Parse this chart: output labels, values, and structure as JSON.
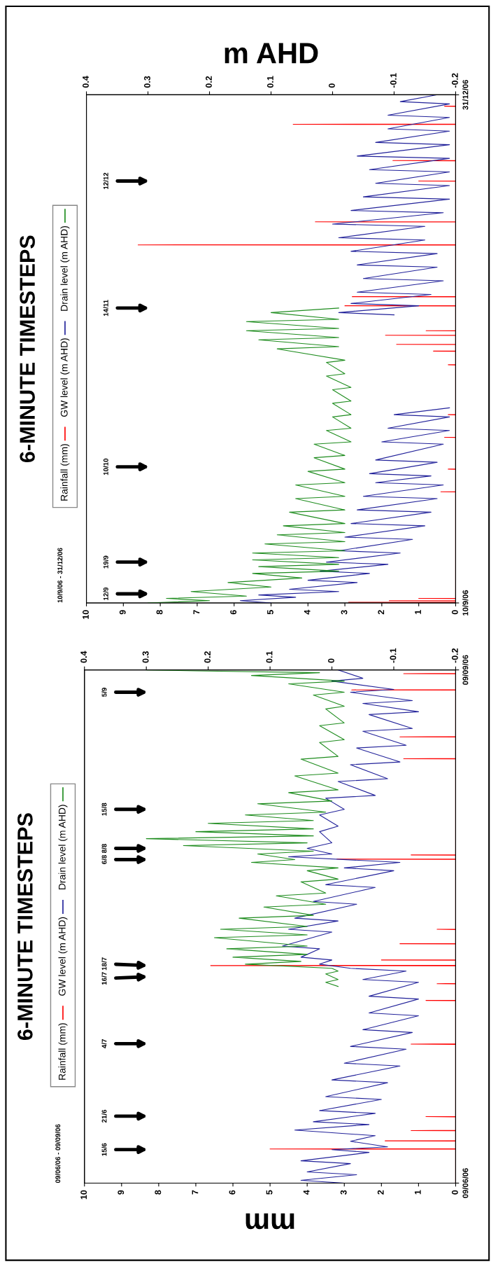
{
  "chart_data": [
    {
      "type": "line",
      "orientation": "horizontal",
      "title": "6-MINUTE TIMESTEPS",
      "subtitle": "10/9/06 - 31/12/06",
      "x2label": "m AHD",
      "legend": "left",
      "ylim": [
        "2006-09-10",
        "2006-12-31"
      ],
      "yticks": [
        {
          "value": "2006-09-10",
          "label": "10/9/06"
        },
        {
          "value": "2006-12-31",
          "label": "31/12/06"
        }
      ],
      "xlim": [
        10,
        0
      ],
      "xticks": [
        0,
        1,
        2,
        3,
        4,
        5,
        6,
        7,
        8,
        9,
        10
      ],
      "x2lim": [
        0.4,
        -0.2
      ],
      "x2ticks": [
        -0.2,
        -0.1,
        0,
        0.1,
        0.2,
        0.3,
        0.4
      ],
      "series": [
        {
          "name": "Rainfall (mm)",
          "color": "#ff0000",
          "x": [
            "2006-09-10T00:00",
            "2006-09-10T02:00",
            "2006-09-10T03:00",
            "2006-09-10T04:00",
            "2006-09-10T11:00",
            "2006-09-10T12:00",
            "2006-09-10T13:00",
            "2006-09-10T23:00",
            "2006-09-11T00:00",
            "2006-09-11T01:00",
            "2006-10-04T11:00",
            "2006-10-04T12:00",
            "2006-10-04T13:00",
            "2006-10-09T11:00",
            "2006-10-09T12:00",
            "2006-10-09T13:00",
            "2006-10-16T11:00",
            "2006-10-16T12:00",
            "2006-10-16T13:00",
            "2006-10-21T11:00",
            "2006-10-21T12:00",
            "2006-10-21T13:00",
            "2006-11-01T11:00",
            "2006-11-01T12:00",
            "2006-11-01T13:00",
            "2006-11-04T11:00",
            "2006-11-04T12:00",
            "2006-11-04T13:00",
            "2006-11-05T23:00",
            "2006-11-06T00:00",
            "2006-11-06T01:00",
            "2006-11-07T23:00",
            "2006-11-08T00:00",
            "2006-11-08T01:00",
            "2006-11-08T23:00",
            "2006-11-09T00:00",
            "2006-11-09T01:00",
            "2006-11-14T11:00",
            "2006-11-14T12:00",
            "2006-11-14T13:00",
            "2006-11-16T11:00",
            "2006-11-16T12:00",
            "2006-11-16T13:00",
            "2006-11-27T21:00",
            "2006-11-27T22:00",
            "2006-11-27T23:00",
            "2006-12-02T23:00",
            "2006-12-03T00:00",
            "2006-12-03T01:00",
            "2006-12-11T23:00",
            "2006-12-12T00:00",
            "2006-12-12T01:00",
            "2006-12-16T11:00",
            "2006-12-16T12:00",
            "2006-12-16T13:00",
            "2006-12-24T11:00",
            "2006-12-24T12:00",
            "2006-12-24T13:00",
            "2006-12-28T11:00",
            "2006-12-28T12:00",
            "2006-12-28T13:00",
            "2006-12-31T00:00"
          ],
          "values": [
            0,
            0,
            2.9,
            0,
            0,
            1.8,
            0,
            0,
            1.0,
            0,
            0,
            0.4,
            0,
            0,
            0.2,
            0,
            0,
            0.3,
            0,
            0,
            0.2,
            0,
            0,
            0.2,
            0,
            0,
            0.6,
            0,
            0,
            1.6,
            0,
            0,
            1.9,
            0,
            0,
            0.8,
            0,
            0,
            3.0,
            0,
            0,
            2.8,
            0,
            0,
            8.6,
            0,
            0,
            3.8,
            0,
            0,
            1.0,
            0,
            0,
            1.7,
            0,
            0,
            4.4,
            0,
            0,
            0.3,
            0,
            0
          ]
        },
        {
          "name": "GW level (m AHD)",
          "color": "#22229a",
          "axis": "x2",
          "x": [
            "2006-09-10T00:00",
            "2006-09-10T12:00",
            "2006-09-11T06:00",
            "2006-09-11T18:00",
            "2006-09-12T12:00",
            "2006-09-13T00:00",
            "2006-09-14T12:00",
            "2006-09-15T00:00",
            "2006-09-16T12:00",
            "2006-09-17T00:00",
            "2006-09-18T12:00",
            "2006-09-19T00:00",
            "2006-09-21T00:00",
            "2006-09-21T12:00",
            "2006-09-24T00:00",
            "2006-09-24T12:00",
            "2006-09-27T00:00",
            "2006-09-27T12:00",
            "2006-09-30T00:00",
            "2006-09-30T12:00",
            "2006-10-03T00:00",
            "2006-10-03T12:00",
            "2006-10-06T00:00",
            "2006-10-06T12:00",
            "2006-10-08T00:00",
            "2006-10-08T12:00",
            "2006-10-11T00:00",
            "2006-10-11T12:00",
            "2006-10-15T00:00",
            "2006-10-15T12:00",
            "2006-10-18T00:00",
            "2006-10-18T12:00",
            "2006-10-21T00:00",
            "2006-10-21T12:00",
            "2006-10-23T00:00",
            "2006-11-01T00:00",
            "2006-11-12T12:00",
            "2006-11-13T00:00",
            "2006-11-14T12:00",
            "2006-11-15T00:00",
            "2006-11-17T00:00",
            "2006-11-17T12:00",
            "2006-11-20T00:00",
            "2006-11-20T12:00",
            "2006-11-23T00:00",
            "2006-11-23T12:00",
            "2006-11-26T00:00",
            "2006-11-26T12:00",
            "2006-11-29T00:00",
            "2006-11-29T12:00",
            "2006-12-02T00:00",
            "2006-12-02T12:00",
            "2006-12-05T00:00",
            "2006-12-05T12:00",
            "2006-12-08T00:00",
            "2006-12-08T12:00",
            "2006-12-11T00:00",
            "2006-12-11T12:00",
            "2006-12-14T00:00",
            "2006-12-14T12:00",
            "2006-12-17T00:00",
            "2006-12-17T12:00",
            "2006-12-20T00:00",
            "2006-12-20T12:00",
            "2006-12-23T00:00",
            "2006-12-23T12:00",
            "2006-12-26T00:00",
            "2006-12-26T12:00",
            "2006-12-29T00:00",
            "2006-12-29T12:00",
            "2006-12-31T00:00"
          ],
          "values": [
            0.1,
            0.15,
            0.06,
            0.12,
            -0.01,
            0.07,
            -0.04,
            0.04,
            -0.06,
            0.02,
            -0.09,
            0.01,
            -0.11,
            -0.01,
            -0.13,
            -0.02,
            -0.15,
            -0.03,
            -0.16,
            -0.04,
            -0.17,
            -0.05,
            -0.18,
            -0.07,
            -0.16,
            -0.06,
            -0.17,
            -0.07,
            -0.18,
            -0.08,
            -0.19,
            -0.09,
            -0.19,
            -0.1,
            -0.19,
            null,
            -0.1,
            -0.01,
            -0.14,
            -0.03,
            -0.16,
            -0.04,
            -0.18,
            -0.05,
            -0.17,
            -0.04,
            -0.17,
            -0.03,
            -0.15,
            -0.01,
            -0.15,
            0.0,
            -0.18,
            -0.03,
            -0.19,
            -0.05,
            -0.19,
            -0.07,
            -0.19,
            -0.06,
            -0.19,
            -0.04,
            -0.19,
            -0.07,
            -0.19,
            -0.09,
            -0.19,
            -0.09,
            -0.19,
            -0.11,
            -0.17
          ]
        },
        {
          "name": "Drain level (m AHD)",
          "color": "#1e8c1e",
          "axis": "x2",
          "x": [
            "2006-09-10T00:00",
            "2006-09-10T12:00",
            "2006-09-11T00:00",
            "2006-09-11T12:00",
            "2006-09-12T12:00",
            "2006-09-13T12:00",
            "2006-09-14T12:00",
            "2006-09-15T12:00",
            "2006-09-16T12:00",
            "2006-09-17T00:00",
            "2006-09-18T00:00",
            "2006-09-18T12:00",
            "2006-09-19T12:00",
            "2006-09-20T00:00",
            "2006-09-21T00:00",
            "2006-09-21T12:00",
            "2006-09-23T00:00",
            "2006-09-23T12:00",
            "2006-09-25T00:00",
            "2006-09-25T12:00",
            "2006-09-27T00:00",
            "2006-09-27T12:00",
            "2006-09-30T00:00",
            "2006-09-30T12:00",
            "2006-10-03T00:00",
            "2006-10-03T12:00",
            "2006-10-06T00:00",
            "2006-10-06T12:00",
            "2006-10-09T00:00",
            "2006-10-09T12:00",
            "2006-10-12T00:00",
            "2006-10-12T12:00",
            "2006-10-15T00:00",
            "2006-10-15T12:00",
            "2006-10-18T00:00",
            "2006-10-18T12:00",
            "2006-10-21T00:00",
            "2006-10-21T12:00",
            "2006-10-24T00:00",
            "2006-10-24T12:00",
            "2006-10-27T00:00",
            "2006-10-27T12:00",
            "2006-10-30T00:00",
            "2006-10-30T12:00",
            "2006-11-02T00:00",
            "2006-11-02T12:00",
            "2006-11-05T00:00",
            "2006-11-05T12:00",
            "2006-11-07T00:00",
            "2006-11-07T12:00",
            "2006-11-09T00:00",
            "2006-11-09T12:00",
            "2006-11-11T00:00",
            "2006-11-11T12:00",
            "2006-11-13T00:00",
            "2006-11-14T00:00"
          ],
          "values": [
            0.3,
            0.2,
            0.27,
            0.14,
            0.23,
            0.1,
            0.17,
            0.05,
            0.13,
            -0.01,
            0.12,
            -0.01,
            0.13,
            -0.01,
            0.13,
            -0.02,
            0.11,
            -0.02,
            0.09,
            -0.02,
            0.08,
            -0.02,
            0.07,
            -0.02,
            0.06,
            -0.02,
            0.06,
            -0.02,
            0.04,
            -0.02,
            0.03,
            -0.02,
            0.03,
            -0.03,
            0.01,
            -0.03,
            0.0,
            -0.03,
            0.0,
            -0.03,
            0.0,
            -0.03,
            0.01,
            -0.02,
            0.01,
            -0.02,
            0.09,
            -0.01,
            0.12,
            -0.01,
            0.14,
            -0.01,
            0.14,
            -0.01,
            0.1,
            -0.01
          ]
        }
      ],
      "annotations": [
        "12/9",
        "19/9",
        "10/10",
        "14/11",
        "12/12"
      ]
    },
    {
      "type": "line",
      "orientation": "horizontal",
      "title": "6-MINUTE TIMESTEPS",
      "subtitle": "09/06/06 - 09/09/06",
      "xlabel": "mm",
      "legend": "left",
      "ylim": [
        "2006-06-09",
        "2006-09-09"
      ],
      "yticks": [
        {
          "value": "2006-06-09",
          "label": "09/06/06"
        },
        {
          "value": "2006-09-09",
          "label": "09/09/06"
        }
      ],
      "xlim": [
        10,
        0
      ],
      "xticks": [
        0,
        1,
        2,
        3,
        4,
        5,
        6,
        7,
        8,
        9,
        10
      ],
      "x2lim": [
        0.4,
        -0.2
      ],
      "x2ticks": [
        -0.2,
        -0.1,
        0,
        0.1,
        0.2,
        0.3,
        0.4
      ],
      "series": [
        {
          "name": "Rainfall (mm)",
          "color": "#ff0000",
          "x": [
            "2006-06-09T00:00",
            "2006-06-15T02:00",
            "2006-06-15T03:00",
            "2006-06-15T04:00",
            "2006-06-16T13:00",
            "2006-06-16T14:00",
            "2006-06-16T15:00",
            "2006-06-18T09:00",
            "2006-06-18T10:00",
            "2006-06-18T11:00",
            "2006-06-20T21:00",
            "2006-06-20T22:00",
            "2006-06-20T23:00",
            "2006-07-03T21:00",
            "2006-07-03T22:00",
            "2006-07-03T23:00",
            "2006-07-11T17:00",
            "2006-07-11T18:00",
            "2006-07-11T19:00",
            "2006-07-14T17:00",
            "2006-07-14T18:00",
            "2006-07-14T19:00",
            "2006-07-17T23:00",
            "2006-07-18T00:00",
            "2006-07-18T01:00",
            "2006-07-18T23:00",
            "2006-07-19T00:00",
            "2006-07-19T01:00",
            "2006-07-21T21:00",
            "2006-07-21T22:00",
            "2006-07-21T23:00",
            "2006-07-24T11:00",
            "2006-07-24T12:00",
            "2006-07-24T13:00",
            "2006-08-06T01:00",
            "2006-08-06T02:00",
            "2006-08-06T03:00",
            "2006-08-06T19:00",
            "2006-08-06T20:00",
            "2006-08-06T21:00",
            "2006-08-24T01:00",
            "2006-08-24T02:00",
            "2006-08-24T03:00",
            "2006-08-27T23:00",
            "2006-08-28T00:00",
            "2006-08-28T01:00",
            "2006-09-05T09:00",
            "2006-09-05T10:00",
            "2006-09-05T11:00",
            "2006-09-08T07:00",
            "2006-09-08T08:00",
            "2006-09-08T09:00",
            "2006-09-09T00:00"
          ],
          "values": [
            0,
            0,
            5.0,
            0,
            0,
            1.9,
            0,
            0,
            1.2,
            0,
            0,
            0.8,
            0,
            0,
            1.2,
            0,
            0,
            0.8,
            0,
            0,
            0.5,
            0,
            0,
            6.6,
            0,
            0,
            2.0,
            0,
            0,
            1.5,
            0,
            0,
            0.5,
            0,
            0,
            3.2,
            0,
            0,
            1.2,
            0,
            0,
            1.4,
            0,
            0,
            1.5,
            0,
            0,
            2.8,
            0,
            0,
            1.4,
            0,
            0
          ]
        },
        {
          "name": "GW level (m AHD)",
          "color": "#22229a",
          "axis": "x2",
          "x": [
            "2006-06-09T00:00",
            "2006-06-09T12:00",
            "2006-06-10T12:00",
            "2006-06-11T00:00",
            "2006-06-12T12:00",
            "2006-06-13T00:00",
            "2006-06-14T12:00",
            "2006-06-15T00:00",
            "2006-06-15T12:00",
            "2006-06-16T12:00",
            "2006-06-17T12:00",
            "2006-06-18T12:00",
            "2006-06-19T12:00",
            "2006-06-20T00:00",
            "2006-06-21T12:00",
            "2006-06-22T00:00",
            "2006-06-24T00:00",
            "2006-06-24T12:00",
            "2006-06-27T00:00",
            "2006-06-27T12:00",
            "2006-06-30T00:00",
            "2006-06-30T12:00",
            "2006-07-03T00:00",
            "2006-07-03T12:00",
            "2006-07-06T00:00",
            "2006-07-06T12:00",
            "2006-07-09T00:00",
            "2006-07-09T12:00",
            "2006-07-12T00:00",
            "2006-07-12T12:00",
            "2006-07-15T00:00",
            "2006-07-15T12:00",
            "2006-07-17T00:00",
            "2006-07-17T12:00",
            "2006-07-18T06:00",
            "2006-07-19T00:00",
            "2006-07-19T12:00",
            "2006-07-21T00:00",
            "2006-07-21T12:00",
            "2006-07-24T00:00",
            "2006-07-24T12:00",
            "2006-07-26T00:00",
            "2006-07-26T12:00",
            "2006-07-29T00:00",
            "2006-07-29T12:00",
            "2006-08-01T00:00",
            "2006-08-01T12:00",
            "2006-08-04T00:00",
            "2006-08-04T12:00",
            "2006-08-05T12:00",
            "2006-08-06T12:00",
            "2006-08-07T00:00",
            "2006-08-08T00:00",
            "2006-08-09T00:00",
            "2006-08-11T00:00",
            "2006-08-12T00:00",
            "2006-08-14T00:00",
            "2006-08-15T00:00",
            "2006-08-17T00:00",
            "2006-08-17T12:00",
            "2006-08-20T00:00",
            "2006-08-20T12:00",
            "2006-08-23T00:00",
            "2006-08-23T12:00",
            "2006-08-26T00:00",
            "2006-08-26T12:00",
            "2006-08-29T00:00",
            "2006-08-29T12:00",
            "2006-09-01T00:00",
            "2006-09-01T12:00",
            "2006-09-03T00:00",
            "2006-09-03T12:00",
            "2006-09-05T00:00",
            "2006-09-05T12:00",
            "2006-09-07T00:00",
            "2006-09-07T12:00",
            "2006-09-09T00:00"
          ],
          "values": [
            -0.02,
            0.05,
            -0.04,
            0.04,
            -0.03,
            0.05,
            -0.06,
            0.0,
            -0.09,
            -0.03,
            -0.07,
            0.06,
            -0.06,
            0.03,
            -0.07,
            0.02,
            -0.08,
            0.01,
            -0.09,
            0.0,
            -0.11,
            -0.02,
            -0.12,
            -0.03,
            -0.13,
            -0.05,
            -0.14,
            -0.06,
            -0.14,
            -0.06,
            -0.14,
            -0.05,
            -0.12,
            -0.03,
            0.02,
            0.0,
            0.05,
            0.02,
            0.08,
            0.0,
            0.07,
            -0.01,
            0.06,
            -0.04,
            0.03,
            -0.07,
            0.01,
            -0.1,
            -0.02,
            -0.11,
            0.07,
            0.0,
            0.04,
            0.0,
            0.02,
            -0.01,
            0.02,
            -0.02,
            0.01,
            -0.07,
            -0.01,
            -0.09,
            -0.03,
            -0.11,
            -0.04,
            -0.12,
            -0.05,
            -0.13,
            -0.06,
            -0.14,
            -0.05,
            -0.13,
            -0.03,
            -0.1,
            0.0,
            -0.05,
            -0.01
          ]
        },
        {
          "name": "Drain level (m AHD)",
          "color": "#1e8c1e",
          "axis": "x2",
          "x": [
            "2006-07-14T06:00",
            "2006-07-15T00:00",
            "2006-07-15T12:00",
            "2006-07-16T12:00",
            "2006-07-17T00:00",
            "2006-07-17T12:00",
            "2006-07-18T06:00",
            "2006-07-18T18:00",
            "2006-07-19T12:00",
            "2006-07-20T00:00",
            "2006-07-21T00:00",
            "2006-07-21T12:00",
            "2006-07-23T00:00",
            "2006-07-23T12:00",
            "2006-07-24T12:00",
            "2006-07-25T00:00",
            "2006-07-26T12:00",
            "2006-07-27T00:00",
            "2006-07-28T12:00",
            "2006-07-29T00:00",
            "2006-07-30T12:00",
            "2006-07-31T00:00",
            "2006-08-02T00:00",
            "2006-08-02T12:00",
            "2006-08-04T00:00",
            "2006-08-04T12:00",
            "2006-08-05T12:00",
            "2006-08-06T00:00",
            "2006-08-07T00:00",
            "2006-08-07T12:00",
            "2006-08-08T12:00",
            "2006-08-09T00:00",
            "2006-08-09T18:00",
            "2006-08-10T06:00",
            "2006-08-11T00:00",
            "2006-08-11T12:00",
            "2006-08-12T12:00",
            "2006-08-13T00:00",
            "2006-08-14T00:00",
            "2006-08-14T12:00",
            "2006-08-16T00:00",
            "2006-08-16T12:00",
            "2006-08-18T00:00",
            "2006-08-18T12:00",
            "2006-08-21T00:00",
            "2006-08-21T12:00",
            "2006-08-24T00:00",
            "2006-08-24T12:00",
            "2006-08-27T00:00",
            "2006-08-27T12:00",
            "2006-08-30T00:00",
            "2006-08-30T12:00",
            "2006-09-02T00:00",
            "2006-09-02T12:00",
            "2006-09-04T12:00",
            "2006-09-05T00:00",
            "2006-09-06T12:00",
            "2006-09-07T00:00",
            "2006-09-08T00:00",
            "2006-09-08T12:00",
            "2006-09-08T20:00",
            "2006-09-09T00:00"
          ],
          "values": [
            -0.01,
            0.01,
            -0.01,
            0.01,
            -0.01,
            0.0,
            0.14,
            0.05,
            0.16,
            0.04,
            0.17,
            0.04,
            0.19,
            0.04,
            0.18,
            0.04,
            0.15,
            0.03,
            0.11,
            0.01,
            0.09,
            0.01,
            0.05,
            -0.01,
            0.04,
            -0.01,
            0.13,
            0.06,
            0.12,
            0.03,
            0.24,
            0.04,
            0.3,
            0.03,
            0.22,
            0.03,
            0.2,
            0.03,
            0.14,
            0.01,
            0.12,
            0.0,
            0.07,
            -0.01,
            0.06,
            -0.01,
            0.05,
            -0.01,
            0.02,
            -0.02,
            0.02,
            -0.02,
            0.01,
            -0.02,
            0.03,
            -0.02,
            0.07,
            -0.02,
            0.13,
            0.02,
            0.22,
            0.3
          ]
        }
      ],
      "annotations": [
        "15/6",
        "21/6",
        "4/7",
        "16/7",
        "18/7",
        "6/8",
        "8/8",
        "15/8",
        "5/9"
      ]
    }
  ]
}
